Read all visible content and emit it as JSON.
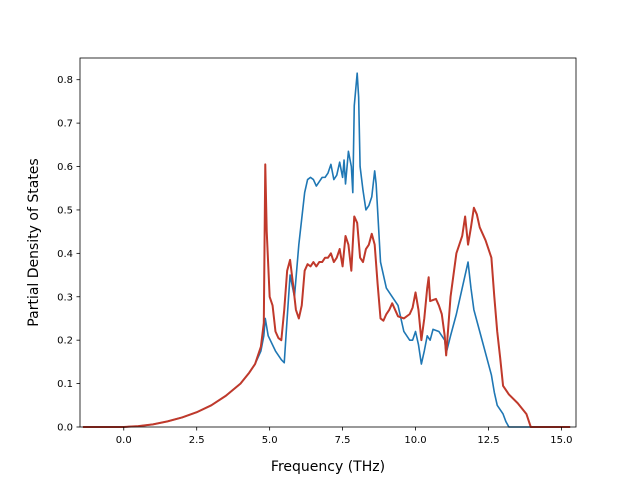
{
  "chart_data": {
    "type": "line",
    "title": "",
    "xlabel": "Frequency (THz)",
    "ylabel": "Partial Density of States",
    "xlim": [
      -1.5,
      15.5
    ],
    "ylim": [
      0.0,
      0.85
    ],
    "xticks": [
      0.0,
      2.5,
      5.0,
      7.5,
      10.0,
      12.5,
      15.0
    ],
    "xtick_labels": [
      "0.0",
      "2.5",
      "5.0",
      "7.5",
      "10.0",
      "12.5",
      "15.0"
    ],
    "yticks": [
      0.0,
      0.1,
      0.2,
      0.3,
      0.4,
      0.5,
      0.6,
      0.7,
      0.8
    ],
    "ytick_labels": [
      "0.0",
      "0.1",
      "0.2",
      "0.3",
      "0.4",
      "0.5",
      "0.6",
      "0.7",
      "0.8"
    ],
    "grid": false,
    "legend": "none",
    "series": [
      {
        "color": "#1f77b4",
        "points": [
          [
            -1.4,
            0.0
          ],
          [
            0.0,
            0.0
          ],
          [
            0.5,
            0.002
          ],
          [
            1.0,
            0.006
          ],
          [
            1.5,
            0.013
          ],
          [
            2.0,
            0.022
          ],
          [
            2.5,
            0.034
          ],
          [
            3.0,
            0.05
          ],
          [
            3.5,
            0.072
          ],
          [
            4.0,
            0.1
          ],
          [
            4.3,
            0.125
          ],
          [
            4.5,
            0.145
          ],
          [
            4.7,
            0.175
          ],
          [
            4.8,
            0.21
          ],
          [
            4.85,
            0.25
          ],
          [
            4.95,
            0.21
          ],
          [
            5.2,
            0.175
          ],
          [
            5.4,
            0.155
          ],
          [
            5.5,
            0.148
          ],
          [
            5.6,
            0.25
          ],
          [
            5.7,
            0.35
          ],
          [
            5.85,
            0.3
          ],
          [
            6.0,
            0.42
          ],
          [
            6.1,
            0.48
          ],
          [
            6.2,
            0.54
          ],
          [
            6.3,
            0.57
          ],
          [
            6.4,
            0.575
          ],
          [
            6.5,
            0.57
          ],
          [
            6.6,
            0.555
          ],
          [
            6.7,
            0.565
          ],
          [
            6.8,
            0.575
          ],
          [
            6.9,
            0.575
          ],
          [
            7.0,
            0.585
          ],
          [
            7.1,
            0.605
          ],
          [
            7.2,
            0.57
          ],
          [
            7.3,
            0.58
          ],
          [
            7.4,
            0.61
          ],
          [
            7.5,
            0.575
          ],
          [
            7.55,
            0.615
          ],
          [
            7.6,
            0.56
          ],
          [
            7.7,
            0.635
          ],
          [
            7.8,
            0.6
          ],
          [
            7.85,
            0.54
          ],
          [
            7.9,
            0.74
          ],
          [
            8.0,
            0.815
          ],
          [
            8.05,
            0.76
          ],
          [
            8.1,
            0.6
          ],
          [
            8.2,
            0.545
          ],
          [
            8.3,
            0.5
          ],
          [
            8.4,
            0.51
          ],
          [
            8.5,
            0.53
          ],
          [
            8.6,
            0.59
          ],
          [
            8.65,
            0.56
          ],
          [
            8.7,
            0.5
          ],
          [
            8.8,
            0.38
          ],
          [
            9.0,
            0.32
          ],
          [
            9.2,
            0.3
          ],
          [
            9.4,
            0.28
          ],
          [
            9.6,
            0.22
          ],
          [
            9.8,
            0.2
          ],
          [
            9.9,
            0.2
          ],
          [
            10.0,
            0.22
          ],
          [
            10.1,
            0.19
          ],
          [
            10.2,
            0.145
          ],
          [
            10.3,
            0.175
          ],
          [
            10.4,
            0.21
          ],
          [
            10.5,
            0.2
          ],
          [
            10.6,
            0.225
          ],
          [
            10.8,
            0.22
          ],
          [
            11.0,
            0.2
          ],
          [
            11.05,
            0.17
          ],
          [
            11.2,
            0.21
          ],
          [
            11.4,
            0.26
          ],
          [
            11.6,
            0.32
          ],
          [
            11.8,
            0.38
          ],
          [
            11.9,
            0.32
          ],
          [
            12.0,
            0.27
          ],
          [
            12.2,
            0.22
          ],
          [
            12.4,
            0.17
          ],
          [
            12.6,
            0.12
          ],
          [
            12.7,
            0.08
          ],
          [
            12.8,
            0.05
          ],
          [
            13.0,
            0.03
          ],
          [
            13.1,
            0.012
          ],
          [
            13.2,
            0.0
          ],
          [
            15.3,
            0.0
          ]
        ]
      },
      {
        "color": "#c0392b",
        "points": [
          [
            -1.4,
            0.0
          ],
          [
            0.0,
            0.0
          ],
          [
            0.5,
            0.002
          ],
          [
            1.0,
            0.006
          ],
          [
            1.5,
            0.013
          ],
          [
            2.0,
            0.022
          ],
          [
            2.5,
            0.034
          ],
          [
            3.0,
            0.05
          ],
          [
            3.5,
            0.072
          ],
          [
            4.0,
            0.1
          ],
          [
            4.3,
            0.125
          ],
          [
            4.5,
            0.145
          ],
          [
            4.7,
            0.185
          ],
          [
            4.8,
            0.24
          ],
          [
            4.85,
            0.605
          ],
          [
            4.9,
            0.45
          ],
          [
            5.0,
            0.3
          ],
          [
            5.1,
            0.28
          ],
          [
            5.2,
            0.22
          ],
          [
            5.3,
            0.205
          ],
          [
            5.4,
            0.2
          ],
          [
            5.5,
            0.27
          ],
          [
            5.6,
            0.36
          ],
          [
            5.7,
            0.385
          ],
          [
            5.8,
            0.33
          ],
          [
            5.9,
            0.27
          ],
          [
            6.0,
            0.25
          ],
          [
            6.1,
            0.28
          ],
          [
            6.2,
            0.36
          ],
          [
            6.3,
            0.375
          ],
          [
            6.4,
            0.37
          ],
          [
            6.5,
            0.38
          ],
          [
            6.6,
            0.37
          ],
          [
            6.7,
            0.38
          ],
          [
            6.8,
            0.38
          ],
          [
            6.9,
            0.39
          ],
          [
            7.0,
            0.39
          ],
          [
            7.1,
            0.4
          ],
          [
            7.2,
            0.38
          ],
          [
            7.3,
            0.39
          ],
          [
            7.4,
            0.41
          ],
          [
            7.5,
            0.37
          ],
          [
            7.6,
            0.44
          ],
          [
            7.7,
            0.42
          ],
          [
            7.8,
            0.36
          ],
          [
            7.9,
            0.485
          ],
          [
            8.0,
            0.47
          ],
          [
            8.1,
            0.39
          ],
          [
            8.2,
            0.38
          ],
          [
            8.3,
            0.41
          ],
          [
            8.4,
            0.42
          ],
          [
            8.5,
            0.445
          ],
          [
            8.6,
            0.42
          ],
          [
            8.7,
            0.33
          ],
          [
            8.8,
            0.25
          ],
          [
            8.9,
            0.245
          ],
          [
            9.0,
            0.26
          ],
          [
            9.1,
            0.27
          ],
          [
            9.2,
            0.285
          ],
          [
            9.3,
            0.27
          ],
          [
            9.4,
            0.255
          ],
          [
            9.6,
            0.25
          ],
          [
            9.8,
            0.26
          ],
          [
            9.9,
            0.275
          ],
          [
            10.0,
            0.31
          ],
          [
            10.1,
            0.27
          ],
          [
            10.2,
            0.2
          ],
          [
            10.3,
            0.25
          ],
          [
            10.4,
            0.32
          ],
          [
            10.45,
            0.345
          ],
          [
            10.5,
            0.29
          ],
          [
            10.7,
            0.295
          ],
          [
            10.8,
            0.28
          ],
          [
            10.9,
            0.26
          ],
          [
            11.0,
            0.21
          ],
          [
            11.05,
            0.165
          ],
          [
            11.2,
            0.3
          ],
          [
            11.3,
            0.35
          ],
          [
            11.4,
            0.4
          ],
          [
            11.5,
            0.42
          ],
          [
            11.6,
            0.44
          ],
          [
            11.7,
            0.485
          ],
          [
            11.8,
            0.42
          ],
          [
            11.9,
            0.46
          ],
          [
            12.0,
            0.505
          ],
          [
            12.1,
            0.49
          ],
          [
            12.2,
            0.46
          ],
          [
            12.4,
            0.43
          ],
          [
            12.6,
            0.39
          ],
          [
            12.7,
            0.3
          ],
          [
            12.8,
            0.22
          ],
          [
            12.9,
            0.16
          ],
          [
            13.0,
            0.095
          ],
          [
            13.2,
            0.075
          ],
          [
            13.5,
            0.055
          ],
          [
            13.8,
            0.03
          ],
          [
            13.95,
            0.0
          ],
          [
            15.3,
            0.0
          ]
        ]
      }
    ]
  }
}
